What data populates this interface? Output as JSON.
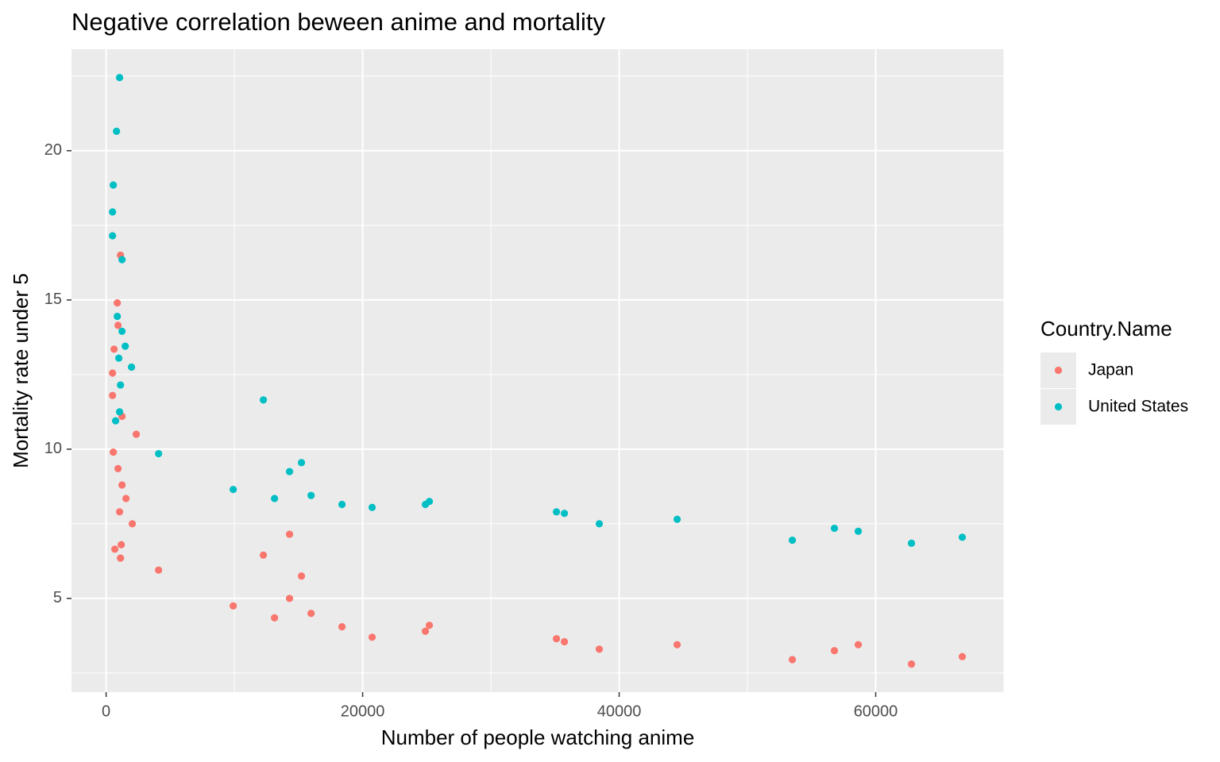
{
  "chart_data": {
    "type": "scatter",
    "title": "Negative correlation beween anime and mortality",
    "x_label": "Number of people watching anime",
    "y_label": "Mortality rate under 5",
    "legend_title": "Country.Name",
    "legend_position": "right",
    "grid": true,
    "minor_grid": true,
    "xlim": [
      -2700,
      70000
    ],
    "xticks": [
      0,
      20000,
      40000,
      60000
    ],
    "ylim": [
      1.86,
      23.4
    ],
    "yticks": [
      5,
      10,
      15,
      20
    ],
    "series": [
      {
        "name": "Japan",
        "color": "#F8766D",
        "x": [
          1120,
          870,
          930,
          620,
          500,
          500,
          1240,
          2350,
          560,
          930,
          1240,
          1550,
          1050,
          2040,
          1180,
          680,
          1120,
          4090,
          9910,
          12260,
          14300,
          15230,
          14300,
          13130,
          15980,
          18390,
          20740,
          24890,
          25200,
          35110,
          35730,
          38450,
          44520,
          53500,
          56780,
          58640,
          62790,
          66750
        ],
        "values": [
          16.5,
          14.9,
          14.15,
          13.35,
          12.55,
          11.8,
          11.1,
          10.5,
          9.9,
          9.35,
          8.8,
          8.35,
          7.9,
          7.5,
          6.8,
          6.65,
          6.35,
          5.95,
          4.75,
          6.45,
          7.15,
          5.75,
          5.0,
          4.35,
          4.5,
          4.05,
          3.7,
          3.9,
          4.1,
          3.65,
          3.55,
          3.3,
          3.45,
          2.95,
          3.25,
          3.45,
          2.8,
          3.05
        ]
      },
      {
        "name": "United States",
        "color": "#00BFC4",
        "x": [
          1050,
          810,
          560,
          500,
          500,
          1240,
          870,
          1240,
          1490,
          990,
          1980,
          1120,
          12260,
          1050,
          740,
          4090,
          15230,
          14300,
          9910,
          15980,
          13130,
          18390,
          20740,
          24890,
          25200,
          35110,
          35730,
          38450,
          44520,
          53500,
          56780,
          58640,
          62790,
          66750
        ],
        "values": [
          22.45,
          20.65,
          18.85,
          17.95,
          17.15,
          16.35,
          14.45,
          13.95,
          13.45,
          13.05,
          12.75,
          12.15,
          11.65,
          11.25,
          10.95,
          9.85,
          9.55,
          9.25,
          8.65,
          8.45,
          8.35,
          8.15,
          8.05,
          8.15,
          8.25,
          7.9,
          7.85,
          7.5,
          7.65,
          6.95,
          7.35,
          7.25,
          6.85,
          7.05
        ]
      }
    ]
  }
}
